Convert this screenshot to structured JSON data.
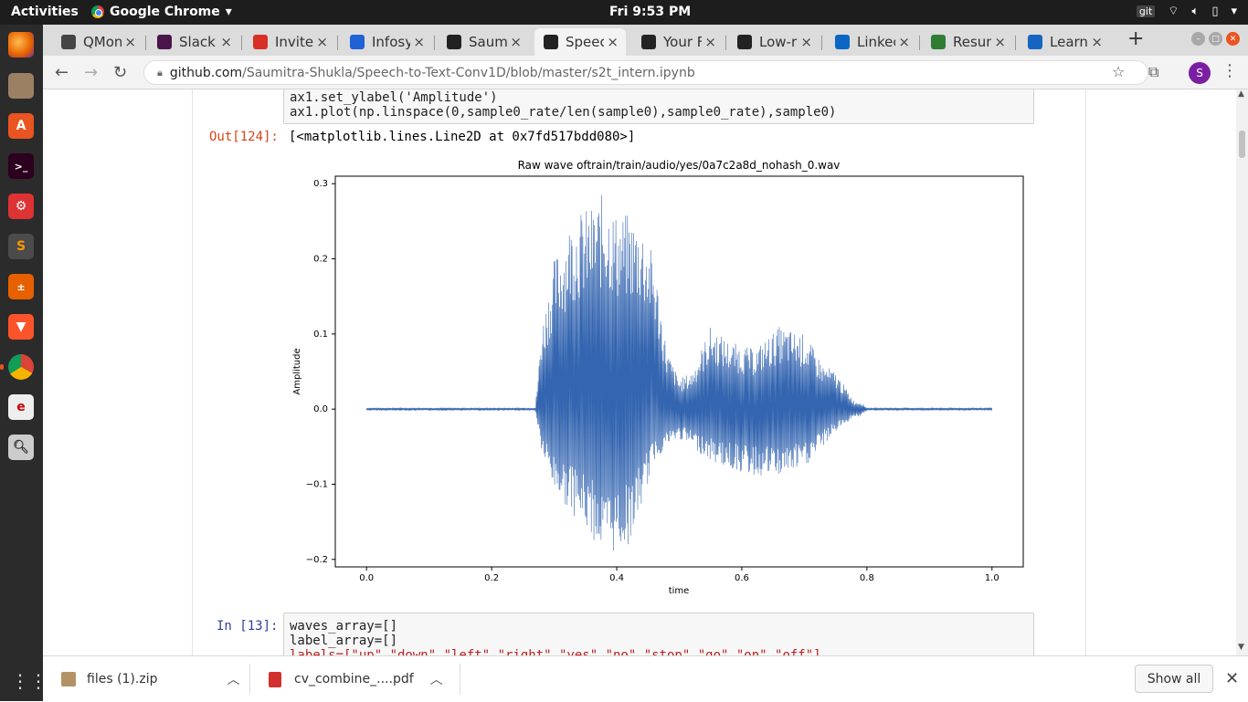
{
  "topbar": {
    "activities": "Activities",
    "app_name": "Google Chrome",
    "clock": "Fri  9:53 PM",
    "tray_git": "git"
  },
  "tabs": [
    {
      "label": "QMon",
      "icon_color": "#444"
    },
    {
      "label": "Slack |",
      "icon_color": "#4a154b"
    },
    {
      "label": "Invite",
      "icon_color": "#d93025"
    },
    {
      "label": "Infosy",
      "icon_color": "#2062d6"
    },
    {
      "label": "Saumi",
      "icon_color": "#222"
    },
    {
      "label": "Speec",
      "icon_color": "#222"
    },
    {
      "label": "Your F",
      "icon_color": "#222"
    },
    {
      "label": "Low-r",
      "icon_color": "#222"
    },
    {
      "label": "Linkec",
      "icon_color": "#0a66c2"
    },
    {
      "label": "Resun",
      "icon_color": "#2e7d32"
    },
    {
      "label": "Learn",
      "icon_color": "#1565c0"
    }
  ],
  "omnibox": {
    "host": "github.com",
    "path": "/Saumitra-Shukla/Speech-to-Text-Conv1D/blob/master/s2t_intern.ipynb"
  },
  "profile_initial": "S",
  "notebook": {
    "cell1_line1": "ax1.set_ylabel('Amplitude')",
    "cell1_line2": "ax1.plot(np.linspace(0,sample0_rate/len(sample0),sample0_rate),sample0)",
    "out_prompt": "Out[124]:",
    "out_text": "[<matplotlib.lines.Line2D at 0x7fd517bdd080>]",
    "in_prompt": "In [13]:",
    "cell2_line1": "waves_array=[]",
    "cell2_line2": "label_array=[]",
    "cell2_line3": "labels=[\"up\",\"down\",\"left\",\"right\",\"yes\",\"no\",\"stop\",\"go\",\"on\",\"off\"]"
  },
  "chart_data": {
    "type": "line",
    "title": "Raw wave oftrain/train/audio/yes/0a7c2a8d_nohash_0.wav",
    "xlabel": "time",
    "ylabel": "Amplitude",
    "xlim": [
      -0.05,
      1.05
    ],
    "ylim": [
      -0.21,
      0.31
    ],
    "xticks": [
      "0.0",
      "0.2",
      "0.4",
      "0.6",
      "0.8",
      "1.0"
    ],
    "yticks": [
      "−0.2",
      "−0.1",
      "0.0",
      "0.1",
      "0.2",
      "0.3"
    ],
    "line_color": "#3465b0",
    "envelope": {
      "x": [
        0.0,
        0.27,
        0.28,
        0.3,
        0.33,
        0.36,
        0.38,
        0.4,
        0.42,
        0.44,
        0.46,
        0.48,
        0.5,
        0.52,
        0.55,
        0.58,
        0.62,
        0.66,
        0.7,
        0.73,
        0.75,
        0.78,
        0.79,
        0.8,
        1.0
      ],
      "upper": [
        0.002,
        0.002,
        0.11,
        0.2,
        0.26,
        0.27,
        0.29,
        0.26,
        0.26,
        0.25,
        0.2,
        0.08,
        0.04,
        0.05,
        0.11,
        0.09,
        0.08,
        0.11,
        0.1,
        0.06,
        0.05,
        0.01,
        0.01,
        0.002,
        0.002
      ],
      "lower": [
        -0.002,
        -0.002,
        -0.06,
        -0.11,
        -0.14,
        -0.17,
        -0.2,
        -0.19,
        -0.18,
        -0.13,
        -0.07,
        -0.05,
        -0.04,
        -0.05,
        -0.07,
        -0.08,
        -0.09,
        -0.09,
        -0.08,
        -0.05,
        -0.03,
        -0.01,
        -0.01,
        -0.002,
        -0.002
      ]
    }
  },
  "downloads": [
    {
      "name": "files (1).zip"
    },
    {
      "name": "cv_combine_....pdf"
    }
  ],
  "show_all": "Show all"
}
